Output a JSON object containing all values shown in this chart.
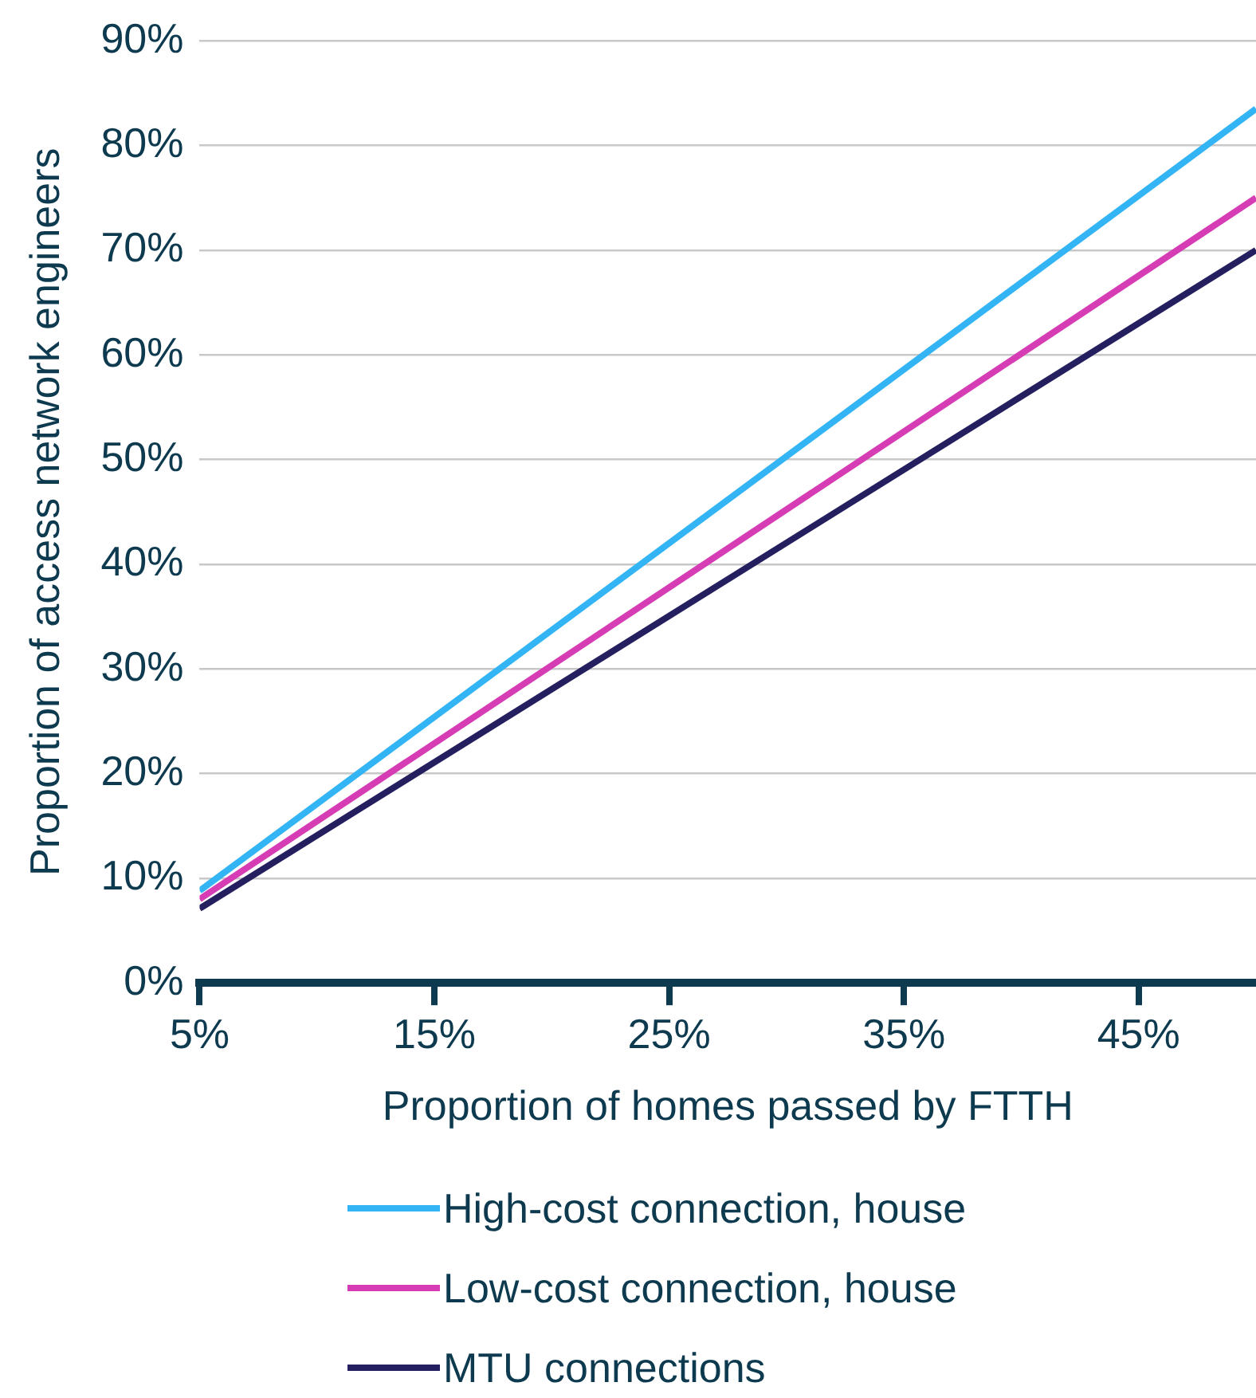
{
  "chart_data": {
    "type": "line",
    "xlabel": "Proportion of homes passed by FTTH",
    "ylabel": "Proportion of access network engineers",
    "x": [
      5,
      50
    ],
    "series": [
      {
        "name": "High-cost connection, house",
        "color": "#33b4f4",
        "values": [
          8.8,
          83.5
        ]
      },
      {
        "name": "Low-cost connection, house",
        "color": "#d63cb4",
        "values": [
          8,
          75
        ]
      },
      {
        "name": "MTU connections",
        "color": "#241f5e",
        "values": [
          7.1,
          70
        ]
      }
    ],
    "xlim": [
      5,
      50
    ],
    "xticks": [
      {
        "value": 5,
        "label": "5%"
      },
      {
        "value": 15,
        "label": "15%"
      },
      {
        "value": 25,
        "label": "25%"
      },
      {
        "value": 35,
        "label": "35%"
      },
      {
        "value": 45,
        "label": "45%"
      }
    ],
    "ylim": [
      0,
      90
    ],
    "yticks": [
      {
        "value": 0,
        "label": "0%"
      },
      {
        "value": 10,
        "label": "10%"
      },
      {
        "value": 20,
        "label": "20%"
      },
      {
        "value": 30,
        "label": "30%"
      },
      {
        "value": 40,
        "label": "40%"
      },
      {
        "value": 50,
        "label": "50%"
      },
      {
        "value": 60,
        "label": "60%"
      },
      {
        "value": 70,
        "label": "70%"
      },
      {
        "value": 80,
        "label": "80%"
      },
      {
        "value": 90,
        "label": "90%"
      }
    ],
    "grid": "y",
    "legend": "bottom",
    "marker": "none",
    "line_style": "solid"
  }
}
